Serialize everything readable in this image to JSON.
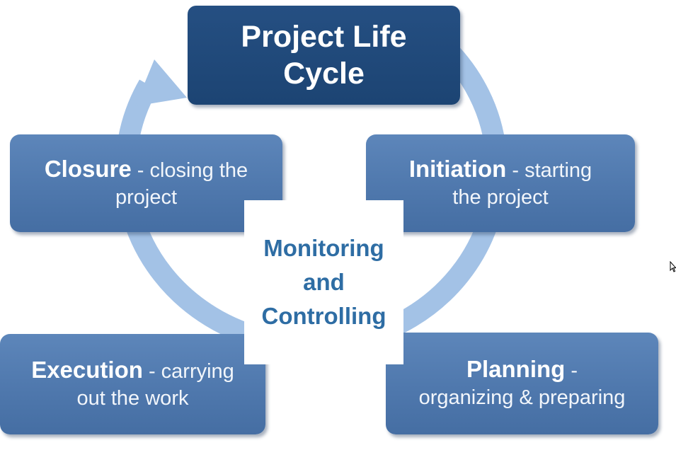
{
  "title": {
    "line1": "Project Life",
    "line2": "Cycle"
  },
  "stages": {
    "initiation": {
      "name": "Initiation",
      "desc1": " - starting",
      "desc2": "the project"
    },
    "planning": {
      "name": "Planning",
      "desc1": " -",
      "desc2": "organizing & preparing"
    },
    "execution": {
      "name": "Execution",
      "desc1": " - carrying",
      "desc2": "out the work"
    },
    "closure": {
      "name": "Closure",
      "desc1": " - closing the",
      "desc2": "project"
    }
  },
  "center": {
    "line1": "Monitoring",
    "line2": "and",
    "line3": "Controlling"
  },
  "colors": {
    "title_box": "#1f4779",
    "stage_box": "#4f78ad",
    "ring": "#a3c2e6",
    "center_text": "#2e6da4"
  },
  "icons": {
    "cycle_arrow": "cycle-arrow-icon",
    "cursor": "mouse-cursor-icon"
  }
}
